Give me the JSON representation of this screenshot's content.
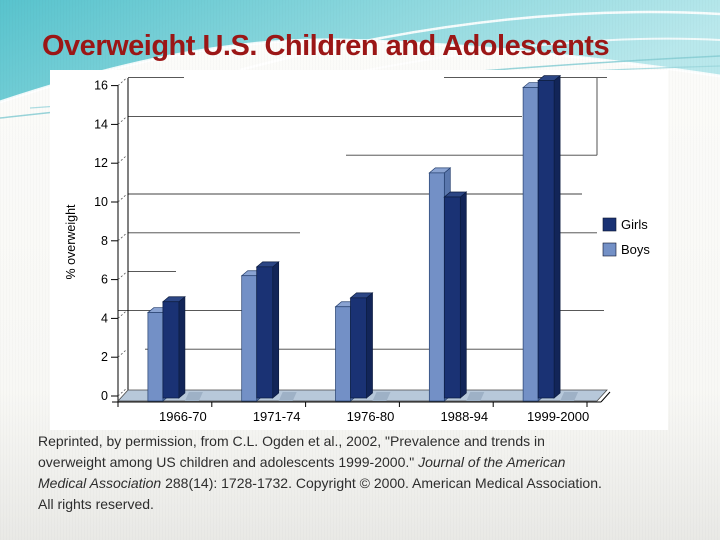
{
  "slide": {
    "title": "Overweight U.S. Children and Adolescents"
  },
  "colors": {
    "title_red": "#9b1616",
    "girls_bar": "#1a3274",
    "boys_bar": "#7390c6",
    "chart_floor": "#b7c8da",
    "header_teal_dark": "#58c3cd",
    "header_teal_light": "#b9e8ec"
  },
  "chart_data": {
    "type": "bar",
    "style": "3d-column",
    "title": "",
    "categories": [
      "1966-70",
      "1971-74",
      "1976-80",
      "1988-94",
      "1999-2000"
    ],
    "series": [
      {
        "name": "Girls",
        "color": "#1a3274",
        "values": [
          4.6,
          6.4,
          4.8,
          10.0,
          16.0
        ]
      },
      {
        "name": "Boys",
        "color": "#7390c6",
        "values": [
          4.3,
          6.2,
          4.6,
          11.5,
          15.9
        ]
      }
    ],
    "xlabel": "",
    "ylabel": "% overweight",
    "ylim": [
      0,
      16
    ],
    "ytick_step": 2,
    "grid": true,
    "legend_position": "right"
  },
  "caption": {
    "lines": [
      [
        {
          "t": "Reprinted, by permission, from C.L. Ogden et al., 2002, \"Prevalence and trends in",
          "i": false
        }
      ],
      [
        {
          "t": "overweight among US children and adolescents 1999-2000.\" ",
          "i": false
        },
        {
          "t": "Journal of the American",
          "i": true
        }
      ],
      [
        {
          "t": "Medical Association",
          "i": true
        },
        {
          "t": " 288(14): 1728-1732. Copyright © 2000. American Medical Association.",
          "i": false
        }
      ],
      [
        {
          "t": "All rights reserved.",
          "i": false
        }
      ]
    ]
  }
}
